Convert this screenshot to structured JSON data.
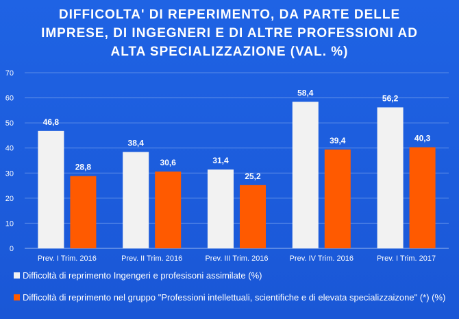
{
  "title_lines": [
    "DIFFICOLTA'  DI REPERIMENTO,  DA PARTE DELLE",
    "IMPRESE,  DI INGEGNERI  E DI ALTRE PROFESSIONI  AD",
    "ALTA SPECIALIZZAZIONE  (VAL. %)"
  ],
  "colors": {
    "background": "#1d5fe0",
    "series1": "#f2f2f2",
    "series2": "#ff5a00",
    "text": "#ffffff"
  },
  "chart_data": {
    "type": "bar",
    "title": "DIFFICOLTA'  DI REPERIMENTO,  DA PARTE DELLE IMPRESE,  DI INGEGNERI  E DI ALTRE PROFESSIONI  AD ALTA SPECIALIZZAZIONE  (VAL. %)",
    "categories": [
      "Prev. I Trim. 2016",
      "Prev. II Trim. 2016",
      "Prev. III Trim. 2016",
      "Prev. IV Trim. 2016",
      "Prev. I  Trim. 2017"
    ],
    "series": [
      {
        "name": "Difficoltà di reprimento Ingengeri e profesisoni assimilate (%)",
        "values": [
          46.8,
          38.4,
          31.4,
          58.4,
          56.2
        ],
        "labels": [
          "46,8",
          "38,4",
          "31,4",
          "58,4",
          "56,2"
        ]
      },
      {
        "name": "Difficoltà di reprimento nel gruppo \"Professioni intellettuali, scientifiche e di elevata specializzaizone\" (*) (%)",
        "values": [
          28.8,
          30.6,
          25.2,
          39.4,
          40.3
        ],
        "labels": [
          "28,8",
          "30,6",
          "25,2",
          "39,4",
          "40,3"
        ]
      }
    ],
    "ylim": [
      0,
      70
    ],
    "yticks": [
      "0",
      "10",
      "20",
      "30",
      "40",
      "50",
      "60",
      "70"
    ],
    "grid": true,
    "legend_position": "bottom"
  }
}
